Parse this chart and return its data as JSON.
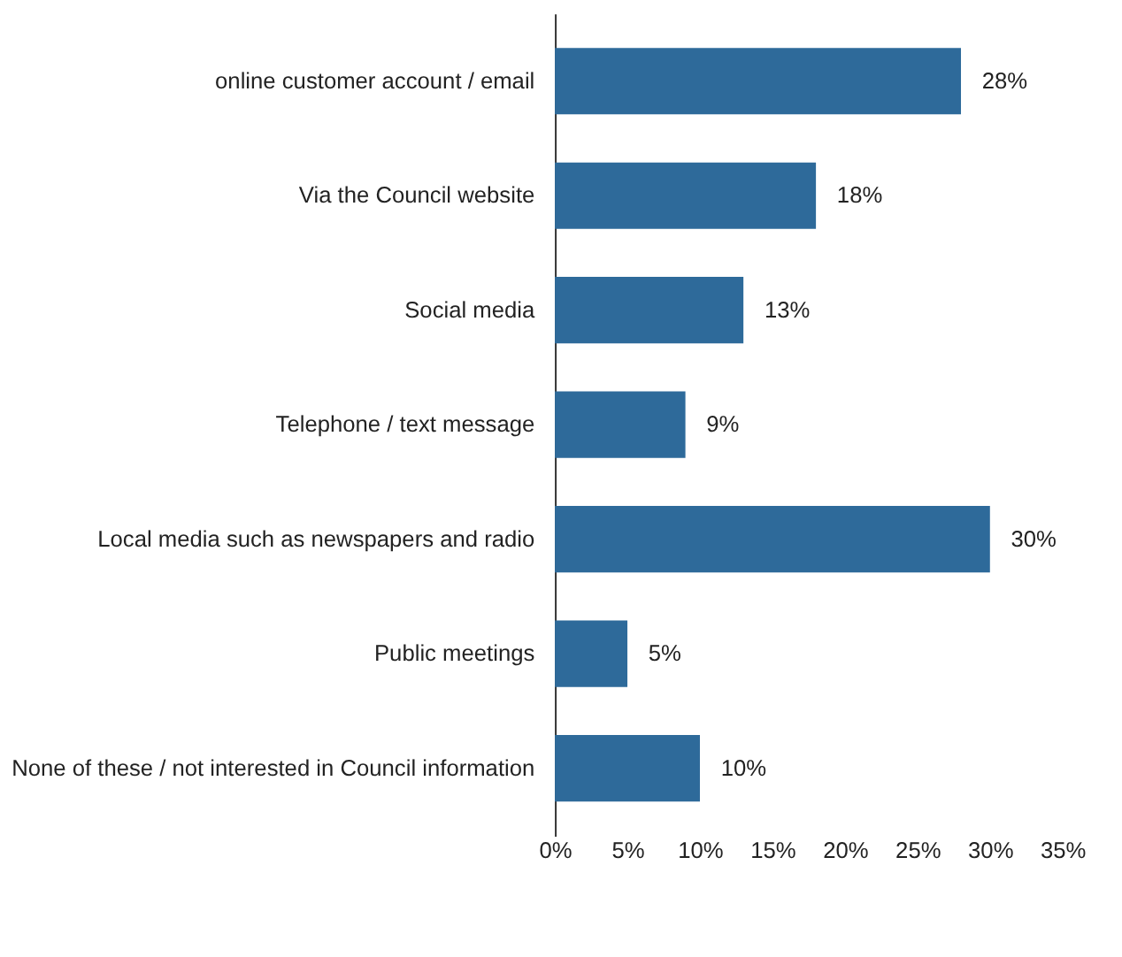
{
  "chart_data": {
    "type": "bar",
    "orientation": "horizontal",
    "categories": [
      "online customer account / email",
      "Via the Council website",
      "Social media",
      "Telephone / text message",
      "Local media such as newspapers and radio",
      "Public meetings",
      "None of these / not interested in Council information"
    ],
    "values": [
      28,
      18,
      13,
      9,
      30,
      5,
      10
    ],
    "value_labels": [
      "28%",
      "18%",
      "13%",
      "9%",
      "30%",
      "5%",
      "10%"
    ],
    "color": "#2e6a9a",
    "xlim": [
      0,
      35
    ],
    "xticks": [
      {
        "value": 0,
        "label": "0%"
      },
      {
        "value": 5,
        "label": "5%"
      },
      {
        "value": 10,
        "label": "10%"
      },
      {
        "value": 15,
        "label": "15%"
      },
      {
        "value": 20,
        "label": "20%"
      },
      {
        "value": 25,
        "label": "25%"
      },
      {
        "value": 30,
        "label": "30%"
      },
      {
        "value": 35,
        "label": "35%"
      }
    ],
    "grid": false
  }
}
